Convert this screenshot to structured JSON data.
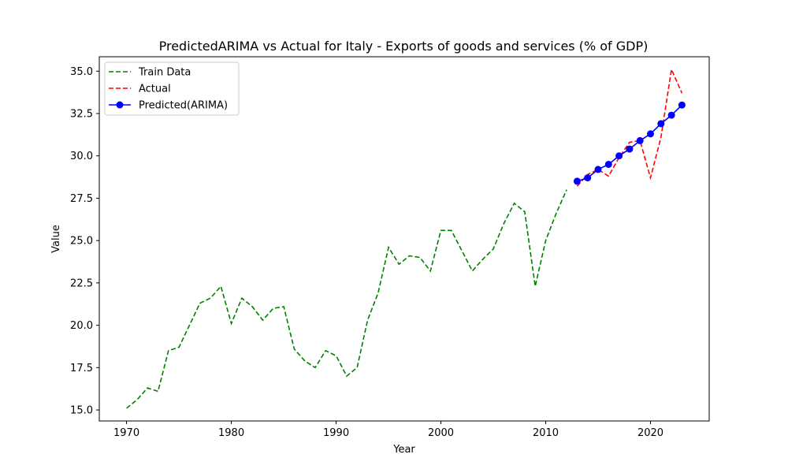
{
  "chart_data": {
    "type": "line",
    "title": "PredictedARIMA vs Actual for Italy - Exports of goods and services (% of GDP)",
    "xlabel": "Year",
    "ylabel": "Value",
    "xlim": [
      1967.4,
      2025.6
    ],
    "ylim": [
      14.35,
      35.85
    ],
    "xticks": [
      1970,
      1980,
      1990,
      2000,
      2010,
      2020
    ],
    "yticks": [
      15.0,
      17.5,
      20.0,
      22.5,
      25.0,
      27.5,
      30.0,
      32.5,
      35.0
    ],
    "ytick_labels": [
      "15.0",
      "17.5",
      "20.0",
      "22.5",
      "25.0",
      "27.5",
      "30.0",
      "32.5",
      "35.0"
    ],
    "grid": false,
    "legend_position": "upper-left",
    "series": [
      {
        "name": "Train Data",
        "color": "#008000",
        "style": "dashed",
        "marker": "none",
        "x": [
          1970,
          1971,
          1972,
          1973,
          1974,
          1975,
          1976,
          1977,
          1978,
          1979,
          1980,
          1981,
          1982,
          1983,
          1984,
          1985,
          1986,
          1987,
          1988,
          1989,
          1990,
          1991,
          1992,
          1993,
          1994,
          1995,
          1996,
          1997,
          1998,
          1999,
          2000,
          2001,
          2002,
          2003,
          2004,
          2005,
          2006,
          2007,
          2008,
          2009,
          2010,
          2011,
          2012
        ],
        "y": [
          15.1,
          15.6,
          16.3,
          16.1,
          18.5,
          18.7,
          20.0,
          21.3,
          21.6,
          22.3,
          20.1,
          21.6,
          21.1,
          20.3,
          21.0,
          21.1,
          18.6,
          17.9,
          17.5,
          18.5,
          18.2,
          17.0,
          17.5,
          20.3,
          21.9,
          24.6,
          23.6,
          24.1,
          24.0,
          23.2,
          25.6,
          25.6,
          24.4,
          23.2,
          23.9,
          24.5,
          26.0,
          27.2,
          26.7,
          22.3,
          25.0,
          26.6,
          28.0
        ]
      },
      {
        "name": "Actual",
        "color": "#ff0000",
        "style": "dashed",
        "marker": "none",
        "x": [
          2013,
          2014,
          2015,
          2016,
          2017,
          2018,
          2019,
          2020,
          2021,
          2022,
          2023
        ],
        "y": [
          28.2,
          28.9,
          29.2,
          28.8,
          29.9,
          30.8,
          30.9,
          28.7,
          31.1,
          35.1,
          33.7
        ]
      },
      {
        "name": "Predicted(ARIMA)",
        "color": "#0000ff",
        "style": "solid",
        "marker": "circle",
        "x": [
          2013,
          2014,
          2015,
          2016,
          2017,
          2018,
          2019,
          2020,
          2021,
          2022,
          2023
        ],
        "y": [
          28.5,
          28.7,
          29.2,
          29.5,
          30.0,
          30.4,
          30.9,
          31.3,
          31.9,
          32.4,
          33.0
        ]
      }
    ]
  }
}
